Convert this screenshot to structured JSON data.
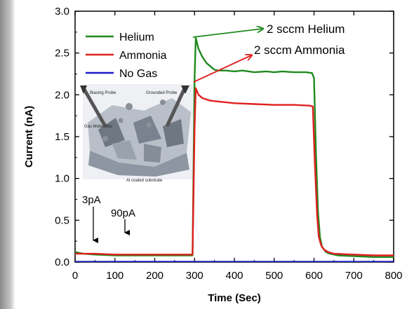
{
  "chart_data": {
    "type": "line",
    "title": "",
    "xlabel": "Time (Sec)",
    "ylabel": "Current (nA)",
    "xlim": [
      0,
      800
    ],
    "ylim": [
      0,
      3.0
    ],
    "x_ticks": [
      "0",
      "100",
      "200",
      "300",
      "400",
      "500",
      "600",
      "700",
      "800"
    ],
    "y_ticks": [
      "0.0",
      "0.5",
      "1.0",
      "1.5",
      "2.0",
      "2.5",
      "3.0"
    ],
    "legend_position": "top-left",
    "series": [
      {
        "name": "Helium",
        "color": "#1f8a1f",
        "x": [
          0,
          20,
          50,
          100,
          150,
          200,
          250,
          290,
          295,
          300,
          303,
          310,
          320,
          330,
          340,
          350,
          360,
          380,
          400,
          420,
          450,
          480,
          500,
          520,
          550,
          580,
          595,
          600,
          605,
          610,
          615,
          620,
          630,
          640,
          660,
          700,
          750,
          800
        ],
        "y": [
          0.12,
          0.1,
          0.09,
          0.08,
          0.08,
          0.08,
          0.08,
          0.08,
          0.08,
          2.2,
          2.68,
          2.55,
          2.45,
          2.38,
          2.34,
          2.3,
          2.29,
          2.29,
          2.28,
          2.29,
          2.27,
          2.28,
          2.27,
          2.28,
          2.27,
          2.27,
          2.26,
          2.2,
          1.3,
          0.6,
          0.3,
          0.18,
          0.12,
          0.1,
          0.08,
          0.07,
          0.06,
          0.06
        ]
      },
      {
        "name": "Ammonia",
        "color": "#e02020",
        "x": [
          0,
          20,
          50,
          100,
          150,
          200,
          250,
          290,
          295,
          300,
          303,
          310,
          320,
          340,
          360,
          380,
          400,
          450,
          500,
          550,
          590,
          597,
          602,
          608,
          612,
          618,
          625,
          635,
          650,
          700,
          750,
          800
        ],
        "y": [
          0.1,
          0.1,
          0.1,
          0.09,
          0.09,
          0.09,
          0.09,
          0.09,
          0.09,
          1.6,
          2.08,
          2.0,
          1.96,
          1.93,
          1.92,
          1.91,
          1.9,
          1.89,
          1.88,
          1.88,
          1.87,
          1.86,
          1.2,
          0.55,
          0.3,
          0.2,
          0.15,
          0.12,
          0.1,
          0.09,
          0.08,
          0.08
        ]
      },
      {
        "name": "No Gas",
        "color": "#1a1acc",
        "x": [
          0,
          100,
          200,
          300,
          400,
          500,
          600,
          700,
          800
        ],
        "y": [
          0.003,
          0.003,
          0.003,
          0.003,
          0.003,
          0.003,
          0.003,
          0.003,
          0.003
        ]
      }
    ],
    "annotations": [
      {
        "text": "2 sccm Helium",
        "points_to": {
          "x": 300,
          "y": 2.67
        },
        "color": "#1f8a1f"
      },
      {
        "text": "2 sccm Ammonia",
        "points_to": {
          "x": 300,
          "y": 2.08
        },
        "color": "#e02020"
      },
      {
        "text": "3pA",
        "points_to": {
          "x": 40,
          "y": 0.003
        }
      },
      {
        "text": "90pA",
        "points_to": {
          "x": 125,
          "y": 0.09
        }
      }
    ],
    "inset": {
      "labels": [
        "Biasing Probe",
        "Grounded Probe",
        "Gas Molecules",
        "Al coated substrate"
      ]
    }
  }
}
